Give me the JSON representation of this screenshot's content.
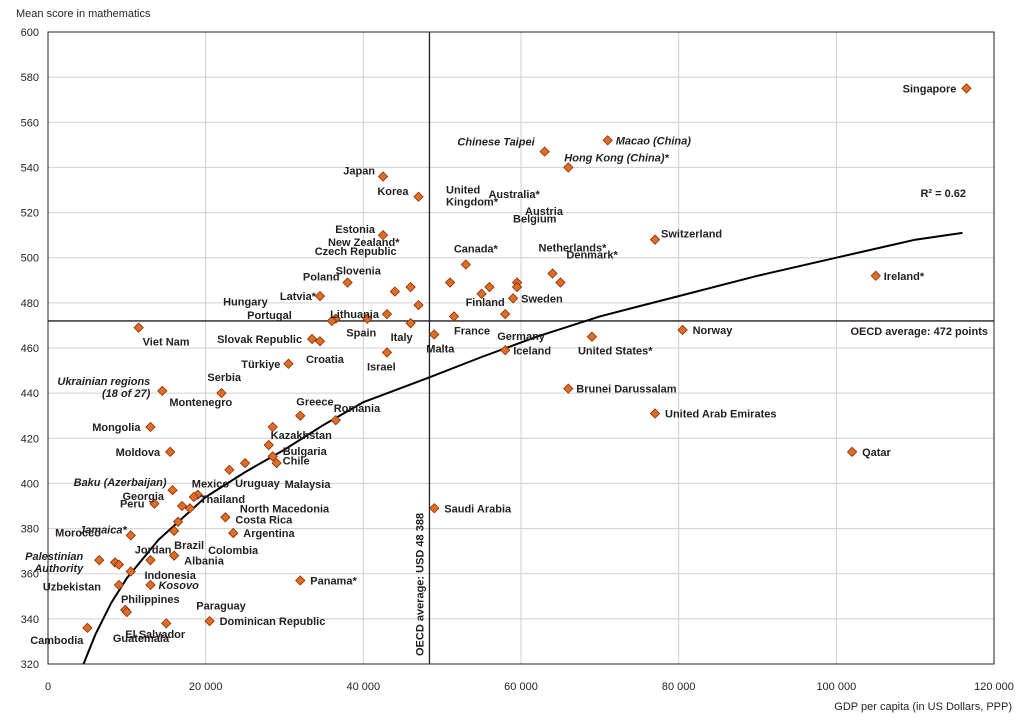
{
  "chart_data": {
    "type": "scatter",
    "ylabel": "Mean score in mathematics",
    "xlabel": "GDP per capita (in US Dollars, PPP)",
    "xlim": [
      0,
      120000
    ],
    "ylim": [
      320,
      600
    ],
    "x_ticks": [
      0,
      20000,
      40000,
      60000,
      80000,
      100000,
      120000
    ],
    "x_tick_labels": [
      "0",
      "20 000",
      "40 000",
      "60 000",
      "80 000",
      "100 000",
      "120 000"
    ],
    "y_ticks": [
      320,
      340,
      360,
      380,
      400,
      420,
      440,
      460,
      480,
      500,
      520,
      540,
      560,
      580,
      600
    ],
    "grid": true,
    "marker_color": "#e36c1e",
    "marker_edge_color": "#7f3210",
    "curve_color": "#000000",
    "trend": {
      "type": "logarithmic",
      "label": "R² = 0.62",
      "points": [
        [
          4500,
          320
        ],
        [
          6000,
          333
        ],
        [
          8000,
          347
        ],
        [
          10000,
          358
        ],
        [
          14000,
          375
        ],
        [
          20000,
          394
        ],
        [
          25000,
          405
        ],
        [
          30000,
          415
        ],
        [
          35000,
          426
        ],
        [
          40000,
          436
        ],
        [
          48388,
          447
        ],
        [
          55000,
          456
        ],
        [
          62000,
          465
        ],
        [
          70000,
          474
        ],
        [
          80000,
          483
        ],
        [
          90000,
          492
        ],
        [
          100000,
          500
        ],
        [
          110000,
          508
        ],
        [
          116000,
          511
        ]
      ]
    },
    "reference_lines": {
      "horizontal": {
        "y": 472,
        "label": "OECD average: 472 points"
      },
      "vertical": {
        "x": 48388,
        "label": "OECD average: USD 48 388"
      }
    },
    "points": [
      {
        "label": "Singapore",
        "x": 116500,
        "y": 575
      },
      {
        "label": "Macao (China)",
        "x": 71000,
        "y": 552,
        "italic": true
      },
      {
        "label": "Chinese Taipei",
        "x": 63000,
        "y": 547,
        "italic": true
      },
      {
        "label": "Hong Kong (China)*",
        "x": 66000,
        "y": 540,
        "italic": true
      },
      {
        "label": "Japan",
        "x": 42500,
        "y": 536
      },
      {
        "label": "Korea",
        "x": 47000,
        "y": 527
      },
      {
        "label": "Estonia",
        "x": 42500,
        "y": 510
      },
      {
        "label": "Switzerland",
        "x": 77000,
        "y": 508
      },
      {
        "label": "Canada*",
        "x": 53000,
        "y": 497
      },
      {
        "label": "Netherlands*",
        "x": 64000,
        "y": 493
      },
      {
        "label": "Ireland*",
        "x": 105000,
        "y": 492
      },
      {
        "label": "Belgium",
        "x": 59500,
        "y": 489
      },
      {
        "label": "Denmark*",
        "x": 65000,
        "y": 489
      },
      {
        "label": "United Kingdom*",
        "x": 51000,
        "y": 489
      },
      {
        "label": "Poland",
        "x": 38000,
        "y": 489
      },
      {
        "label": "Austria",
        "x": 59500,
        "y": 487
      },
      {
        "label": "Australia*",
        "x": 56000,
        "y": 487
      },
      {
        "label": "Czech Republic",
        "x": 46000,
        "y": 487
      },
      {
        "label": "Slovenia",
        "x": 44000,
        "y": 485
      },
      {
        "label": "Finland",
        "x": 55000,
        "y": 484
      },
      {
        "label": "Latvia*",
        "x": 34500,
        "y": 483
      },
      {
        "label": "Sweden",
        "x": 59000,
        "y": 482
      },
      {
        "label": "New Zealand*",
        "x": 47000,
        "y": 479
      },
      {
        "label": "Lithuania",
        "x": 43000,
        "y": 475
      },
      {
        "label": "Germany",
        "x": 58000,
        "y": 475
      },
      {
        "label": "France",
        "x": 51500,
        "y": 474
      },
      {
        "label": "Spain",
        "x": 40500,
        "y": 473
      },
      {
        "label": "Hungary",
        "x": 36500,
        "y": 473
      },
      {
        "label": "Portugal",
        "x": 36000,
        "y": 472
      },
      {
        "label": "Italy",
        "x": 46000,
        "y": 471
      },
      {
        "label": "Viet Nam",
        "x": 11500,
        "y": 469
      },
      {
        "label": "Norway",
        "x": 80500,
        "y": 468
      },
      {
        "label": "Malta",
        "x": 49000,
        "y": 466
      },
      {
        "label": "United States*",
        "x": 69000,
        "y": 465
      },
      {
        "label": "Slovak Republic",
        "x": 33500,
        "y": 464
      },
      {
        "label": "Croatia",
        "x": 34500,
        "y": 463
      },
      {
        "label": "Iceland",
        "x": 58000,
        "y": 459
      },
      {
        "label": "Israel",
        "x": 43000,
        "y": 458
      },
      {
        "label": "Türkiye",
        "x": 30500,
        "y": 453
      },
      {
        "label": "Brunei Darussalam",
        "x": 66000,
        "y": 442
      },
      {
        "label": "Ukrainian regions (18 of 27)",
        "x": 14500,
        "y": 441,
        "italic": true
      },
      {
        "label": "Serbia",
        "x": 22000,
        "y": 440
      },
      {
        "label": "United Arab Emirates",
        "x": 77000,
        "y": 431
      },
      {
        "label": "Greece",
        "x": 32000,
        "y": 430
      },
      {
        "label": "Romania",
        "x": 36500,
        "y": 428
      },
      {
        "label": "Kazakhstan",
        "x": 28500,
        "y": 425
      },
      {
        "label": "Mongolia",
        "x": 13000,
        "y": 425
      },
      {
        "label": "Bulgaria",
        "x": 28000,
        "y": 417
      },
      {
        "label": "Moldova",
        "x": 15500,
        "y": 414
      },
      {
        "label": "Qatar",
        "x": 102000,
        "y": 414
      },
      {
        "label": "Chile",
        "x": 28500,
        "y": 412
      },
      {
        "label": "Uruguay",
        "x": 25000,
        "y": 409
      },
      {
        "label": "Malaysia",
        "x": 29000,
        "y": 409
      },
      {
        "label": "Montenegro",
        "x": 23000,
        "y": 406
      },
      {
        "label": "Baku (Azerbaijan)",
        "x": 15800,
        "y": 397,
        "italic": true
      },
      {
        "label": "Mexico",
        "x": 19000,
        "y": 395
      },
      {
        "label": "Thailand",
        "x": 18500,
        "y": 394
      },
      {
        "label": "Peru",
        "x": 13500,
        "y": 391
      },
      {
        "label": "Georgia",
        "x": 17000,
        "y": 390
      },
      {
        "label": "North Macedonia",
        "x": 18000,
        "y": 389
      },
      {
        "label": "Saudi Arabia",
        "x": 49000,
        "y": 389
      },
      {
        "label": "Costa Rica",
        "x": 22500,
        "y": 385
      },
      {
        "label": "Colombia",
        "x": 16500,
        "y": 383
      },
      {
        "label": "Brazil",
        "x": 16000,
        "y": 379
      },
      {
        "label": "Jamaica*",
        "x": 10500,
        "y": 377,
        "italic": true
      },
      {
        "label": "Argentina",
        "x": 23500,
        "y": 378
      },
      {
        "label": "Albania",
        "x": 16000,
        "y": 368
      },
      {
        "label": "Palestinian Authority",
        "x": 6500,
        "y": 366,
        "italic": true
      },
      {
        "label": "Indonesia",
        "x": 13000,
        "y": 366
      },
      {
        "label": "Morocco",
        "x": 8500,
        "y": 365
      },
      {
        "label": "Uzbekistan",
        "x": 9000,
        "y": 364
      },
      {
        "label": "Jordan",
        "x": 10500,
        "y": 361
      },
      {
        "label": "Panama*",
        "x": 32000,
        "y": 357
      },
      {
        "label": "Kosovo",
        "x": 13000,
        "y": 355,
        "italic": true
      },
      {
        "label": "Philippines",
        "x": 9000,
        "y": 355
      },
      {
        "label": "El Salvador",
        "x": 9800,
        "y": 344
      },
      {
        "label": "Guatemala",
        "x": 10000,
        "y": 343
      },
      {
        "label": "Dominican Republic",
        "x": 20500,
        "y": 339
      },
      {
        "label": "Paraguay",
        "x": 15000,
        "y": 338
      },
      {
        "label": "Cambodia",
        "x": 5000,
        "y": 336
      }
    ]
  }
}
